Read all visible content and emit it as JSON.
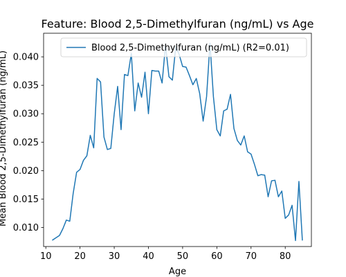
{
  "chart_data": {
    "type": "line",
    "title": "Feature: Blood 2,5-Dimethylfuran (ng/mL) vs Age",
    "xlabel": "Age",
    "ylabel": "Mean Blood 2,5-Dimethylfuran (ng/mL)",
    "xlim": [
      9.35,
      87.65
    ],
    "ylim": [
      0.00665,
      0.04415
    ],
    "xticks": [
      10,
      20,
      30,
      40,
      50,
      60,
      70,
      80
    ],
    "yticks": [
      0.01,
      0.015,
      0.02,
      0.025,
      0.03,
      0.035,
      0.04
    ],
    "ytick_labels": [
      "0.010",
      "0.015",
      "0.020",
      "0.025",
      "0.030",
      "0.035",
      "0.040"
    ],
    "grid": false,
    "legend_position": "top-right",
    "series": [
      {
        "name": "Blood 2,5-Dimethylfuran (ng/mL) (R2=0.01)",
        "color": "#1f77b4",
        "x": [
          12,
          13,
          14,
          15,
          16,
          17,
          18,
          19,
          20,
          21,
          22,
          23,
          24,
          25,
          26,
          27,
          28,
          29,
          30,
          31,
          32,
          33,
          34,
          35,
          36,
          37,
          38,
          39,
          40,
          41,
          42,
          43,
          44,
          45,
          46,
          47,
          48,
          49,
          50,
          51,
          52,
          53,
          54,
          55,
          56,
          57,
          58,
          59,
          60,
          61,
          62,
          63,
          64,
          65,
          66,
          67,
          68,
          69,
          70,
          71,
          72,
          73,
          74,
          75,
          76,
          77,
          78,
          79,
          80,
          81,
          82,
          83,
          84,
          85
        ],
        "y": [
          0.0078,
          0.0082,
          0.0086,
          0.0098,
          0.0113,
          0.0111,
          0.016,
          0.0197,
          0.0202,
          0.0218,
          0.0226,
          0.0262,
          0.024,
          0.0362,
          0.0356,
          0.0259,
          0.0237,
          0.0239,
          0.03,
          0.0348,
          0.0272,
          0.0369,
          0.0367,
          0.0406,
          0.0305,
          0.0354,
          0.0329,
          0.0373,
          0.03,
          0.0376,
          0.0375,
          0.0375,
          0.0354,
          0.0421,
          0.0365,
          0.0359,
          0.0418,
          0.0404,
          0.0383,
          0.0382,
          0.0367,
          0.0351,
          0.0362,
          0.0335,
          0.0287,
          0.033,
          0.0424,
          0.033,
          0.0272,
          0.0261,
          0.0305,
          0.0308,
          0.0334,
          0.0274,
          0.0253,
          0.0245,
          0.0261,
          0.0233,
          0.0229,
          0.0211,
          0.0191,
          0.0193,
          0.0192,
          0.0154,
          0.0182,
          0.0183,
          0.0154,
          0.0164,
          0.0116,
          0.0122,
          0.0139,
          0.0077,
          0.0181,
          0.0078
        ]
      }
    ]
  }
}
